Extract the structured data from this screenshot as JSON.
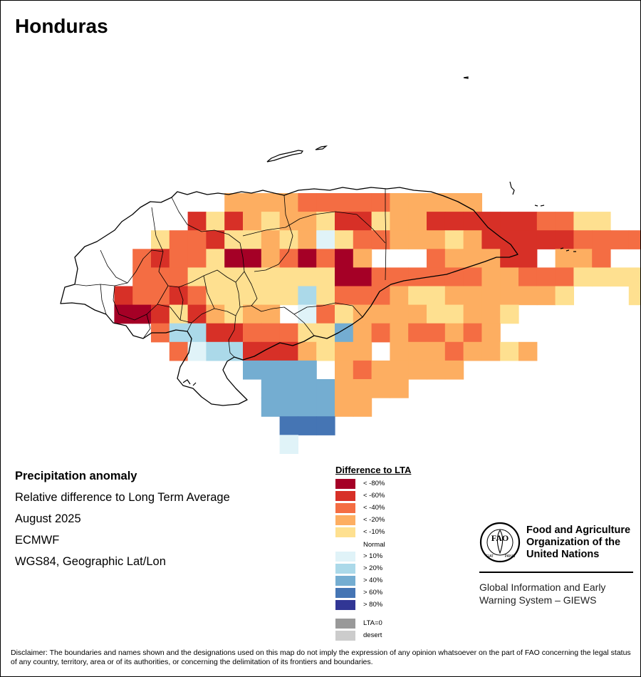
{
  "title": "Honduras",
  "info": {
    "heading": "Precipitation anomaly",
    "line1": "Relative difference to Long Term Average",
    "line2": "August 2025",
    "line3": "ECMWF",
    "line4": "WGS84, Geographic Lat/Lon"
  },
  "legend": {
    "title": "Difference to LTA",
    "items": [
      {
        "label": "< -80%",
        "color": "#a50026"
      },
      {
        "label": "< -60%",
        "color": "#d73027"
      },
      {
        "label": "< -40%",
        "color": "#f46d43"
      },
      {
        "label": "< -20%",
        "color": "#fdae61"
      },
      {
        "label": "< -10%",
        "color": "#fee090"
      },
      {
        "label": "Normal",
        "color": "#ffffff"
      },
      {
        "label": "> 10%",
        "color": "#e0f3f8"
      },
      {
        "label": "> 20%",
        "color": "#abd9e9"
      },
      {
        "label": "> 40%",
        "color": "#74add1"
      },
      {
        "label": "> 60%",
        "color": "#4575b4"
      },
      {
        "label": "> 80%",
        "color": "#313695"
      },
      {
        "label": "LTA=0",
        "color": "#999999"
      },
      {
        "label": "desert",
        "color": "#cccccc"
      }
    ]
  },
  "org": {
    "name_line1": "Food and Agriculture",
    "name_line2": "Organization of the",
    "name_line3": "United Nations",
    "system_line1": "Global Information and Early",
    "system_line2": "Warning System – GIEWS",
    "logo_text": "FAO",
    "logo_ring_left": "FIAT",
    "logo_ring_right": "PANIS"
  },
  "disclaimer": "Disclaimer: The boundaries and names shown and the designations used on this map do not imply the expression of any opinion whatsoever on the part of FAO concerning the legal status of any country, territory, area or of its authorities, or concerning the delimitation of its frontiers and boundaries.",
  "grid": {
    "rows": [
      {
        "c0": 9,
        "cells": "22223333322222"
      },
      {
        "c0": 7,
        "cells": "41421221441224444443311"
      },
      {
        "c0": 5,
        "cells": "1334112127133222124444433331"
      },
      {
        "c0": 4,
        "cells": "3433155235352000322244022300011"
      },
      {
        "c0": 4,
        "cells": "3331111111155333333223331111000006"
      },
      {
        "c0": 3,
        "cells": "433431111161333211222222100011"
      },
      {
        "c0": 3,
        "cells": "5541421220731222211221000"
      },
      {
        "c0": 5,
        "cells": "3664433311823233232"
      },
      {
        "c0": 6,
        "cells": "37664442122022232212"
      },
      {
        "c0": 10,
        "cells": "888802322222"
      },
      {
        "c0": 11,
        "cells": "88882222"
      },
      {
        "c0": 11,
        "cells": "888822"
      },
      {
        "c0": 12,
        "cells": "9990"
      },
      {
        "c0": 12,
        "cells": "7"
      }
    ]
  }
}
